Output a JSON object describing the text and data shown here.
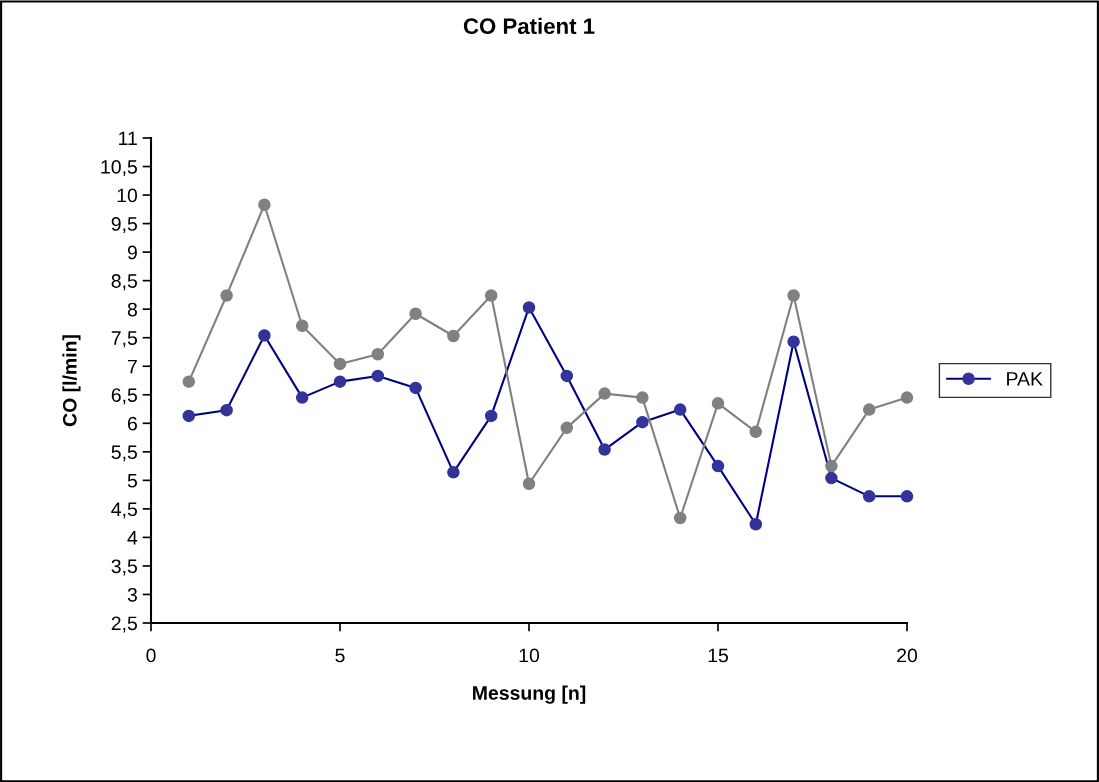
{
  "chart_data": {
    "type": "line",
    "title": "CO Patient 1",
    "xlabel": "Messung [n]",
    "ylabel": "CO [l/min]",
    "x": [
      1,
      2,
      3,
      4,
      5,
      6,
      7,
      8,
      9,
      10,
      11,
      12,
      13,
      14,
      15,
      16,
      17,
      18,
      19,
      20
    ],
    "series": [
      {
        "name": "PAK",
        "color": "#333399",
        "values": [
          6.13,
          6.23,
          7.54,
          6.45,
          6.73,
          6.83,
          6.62,
          5.14,
          6.13,
          8.03,
          6.83,
          5.54,
          6.02,
          6.24,
          5.25,
          4.23,
          7.43,
          5.04,
          4.72,
          4.72
        ]
      },
      {
        "color": "#808080",
        "values": [
          6.73,
          8.24,
          9.83,
          7.71,
          7.04,
          7.21,
          7.92,
          7.53,
          8.24,
          4.94,
          5.92,
          6.52,
          6.45,
          4.34,
          6.35,
          5.85,
          8.24,
          5.25,
          6.24,
          6.45
        ]
      }
    ],
    "xlim": [
      0,
      20
    ],
    "xticks": [
      0,
      5,
      10,
      15,
      20
    ],
    "ylim": [
      2.5,
      11
    ],
    "yticks": [
      {
        "value": 2.5,
        "label": "2,5"
      },
      3,
      {
        "value": 3.5,
        "label": "3,5"
      },
      4,
      {
        "value": 4.5,
        "label": "4,5"
      },
      5,
      {
        "value": 5.5,
        "label": "5,5"
      },
      6,
      {
        "value": 6.5,
        "label": "6,5"
      },
      7,
      {
        "value": 7.5,
        "label": "7,5"
      },
      8,
      {
        "value": 8.5,
        "label": "8,5"
      },
      9,
      {
        "value": 9.5,
        "label": "9,5"
      },
      10,
      {
        "value": 10.5,
        "label": "10,5"
      },
      11
    ],
    "grid": false,
    "legend": "right",
    "marker": "circle",
    "line_style": "solid"
  }
}
